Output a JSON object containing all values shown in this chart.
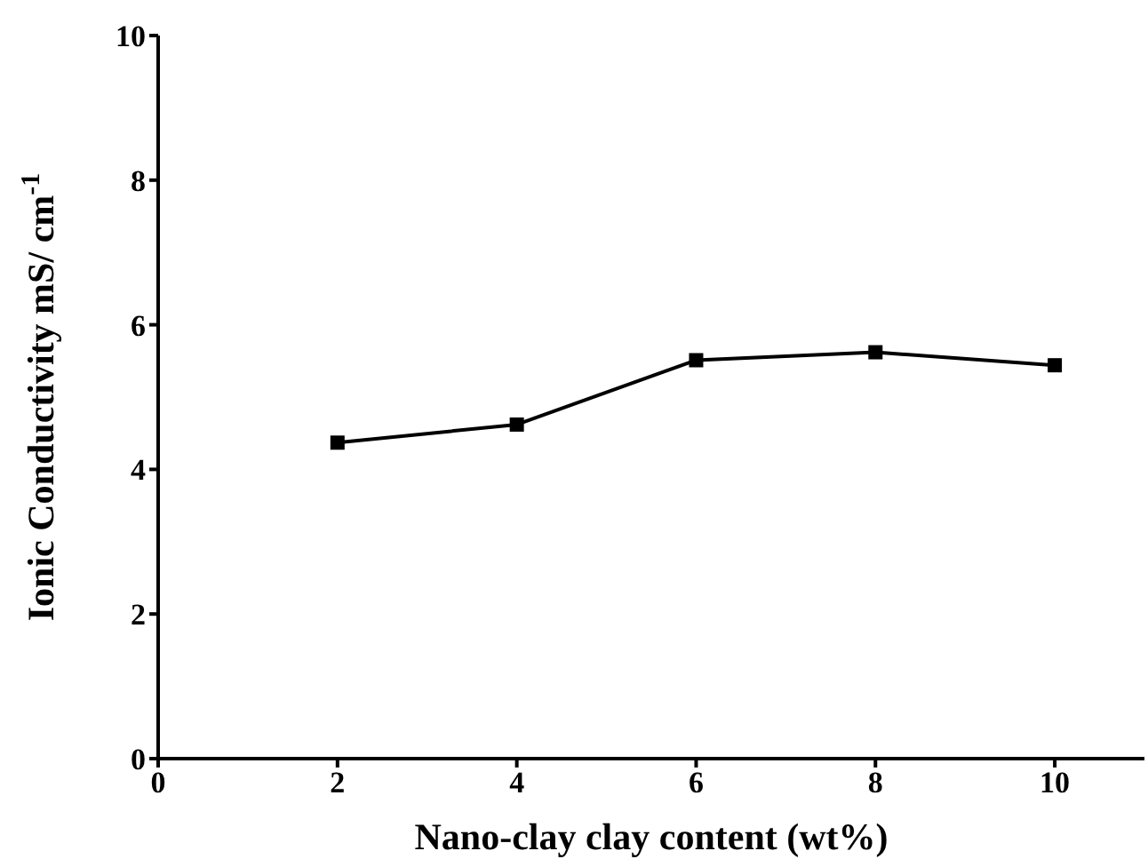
{
  "chart_data": {
    "type": "line",
    "xlabel": "Nano-clay clay content (wt%)",
    "ylabel": "Ionic Conductivity mS/ cm$^{-1}$",
    "x": [
      2,
      4,
      6,
      8,
      10
    ],
    "series": [
      {
        "color": "#000000",
        "values": [
          4.37,
          4.62,
          5.51,
          5.62,
          5.44
        ]
      }
    ],
    "xlim": [
      0,
      11
    ],
    "xticks": [
      0,
      2,
      4,
      6,
      8,
      10
    ],
    "ylim": [
      0,
      10
    ],
    "yticks": [
      0,
      2,
      4,
      6,
      8,
      10
    ],
    "grid": false,
    "legend": false,
    "marker": "square",
    "line_style": "solid"
  }
}
